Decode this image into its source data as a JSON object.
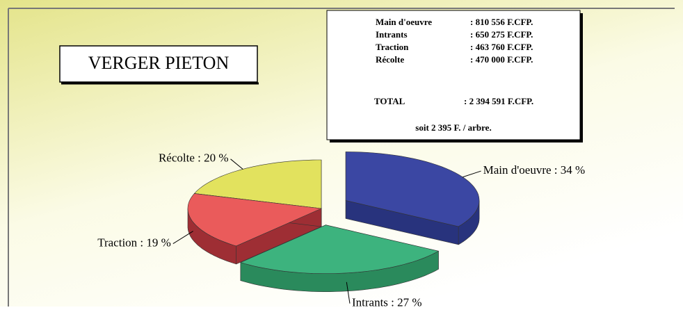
{
  "chart_data": {
    "type": "pie",
    "title": "VERGER PIETON",
    "values": [
      34,
      27,
      19,
      20
    ],
    "value_labels": [
      "Main d'oeuvre : 34 %",
      "Intrants : 27 %",
      "Traction : 19 %",
      "Récolte : 20 %"
    ],
    "colors": [
      "#3b47a3",
      "#3db37e",
      "#ea5b5b",
      "#e2e25e"
    ],
    "side_colors": [
      "#28337d",
      "#2a8a5c",
      "#9e2e34",
      "#b3b33f"
    ],
    "exploded": [
      true,
      true,
      false,
      false
    ]
  },
  "cost_box": {
    "rows": [
      [
        "Main d'oeuvre",
        ": 810 556 F.CFP."
      ],
      [
        "Intrants",
        ": 650 275 F.CFP."
      ],
      [
        "Traction",
        ": 463 760 F.CFP."
      ],
      [
        "Récolte",
        ": 470 000 F.CFP."
      ]
    ],
    "total": [
      "TOTAL",
      ": 2 394 591 F.CFP."
    ],
    "note": "soit 2 395 F. / arbre."
  }
}
